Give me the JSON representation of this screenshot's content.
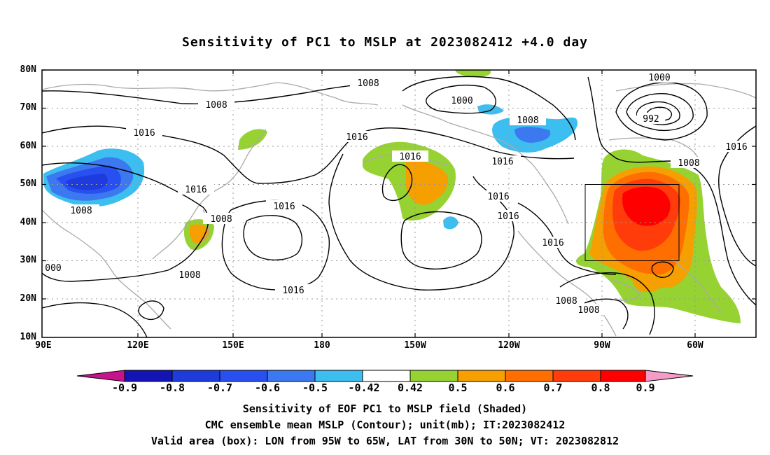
{
  "title": "Sensitivity of PC1 to MSLP at 2023082412 +4.0 day",
  "lat_labels": [
    "80N",
    "70N",
    "60N",
    "50N",
    "40N",
    "30N",
    "20N",
    "10N"
  ],
  "lon_labels": [
    "90E",
    "120E",
    "150E",
    "180",
    "150W",
    "120W",
    "90W",
    "60W"
  ],
  "contour_labels": [
    "1008",
    "1008",
    "1016",
    "1016",
    "1008",
    "1016",
    "1008",
    "1016",
    "1008",
    "1000",
    "1008",
    "1016",
    "1016",
    "1016",
    "1016",
    "1000",
    "992",
    "1008",
    "1016",
    "1008",
    "1008",
    "000"
  ],
  "colorbar": {
    "labels": [
      "-0.9",
      "-0.8",
      "-0.7",
      "-0.6",
      "-0.5",
      "-0.42",
      "0.42",
      "0.5",
      "0.6",
      "0.7",
      "0.8",
      "0.9"
    ],
    "colors": [
      "#c8128c",
      "#1414b4",
      "#1e3cdc",
      "#2850f0",
      "#3c78f0",
      "#3cbef0",
      "#ffffff",
      "#96d232",
      "#f5a000",
      "#ff6e00",
      "#ff3c0a",
      "#ff0000",
      "#f59bc8"
    ]
  },
  "box": {
    "lon_west": "95W",
    "lon_east": "65W",
    "lat_south": "30N",
    "lat_north": "50N"
  },
  "captions": {
    "line1": "Sensitivity of EOF PC1 to MSLP field (Shaded)",
    "line2": "CMC ensemble mean MSLP (Contour); unit(mb); IT:2023082412",
    "line3": "Valid area (box): LON from 95W to 65W, LAT from 30N to 50N; VT: 2023082812"
  }
}
